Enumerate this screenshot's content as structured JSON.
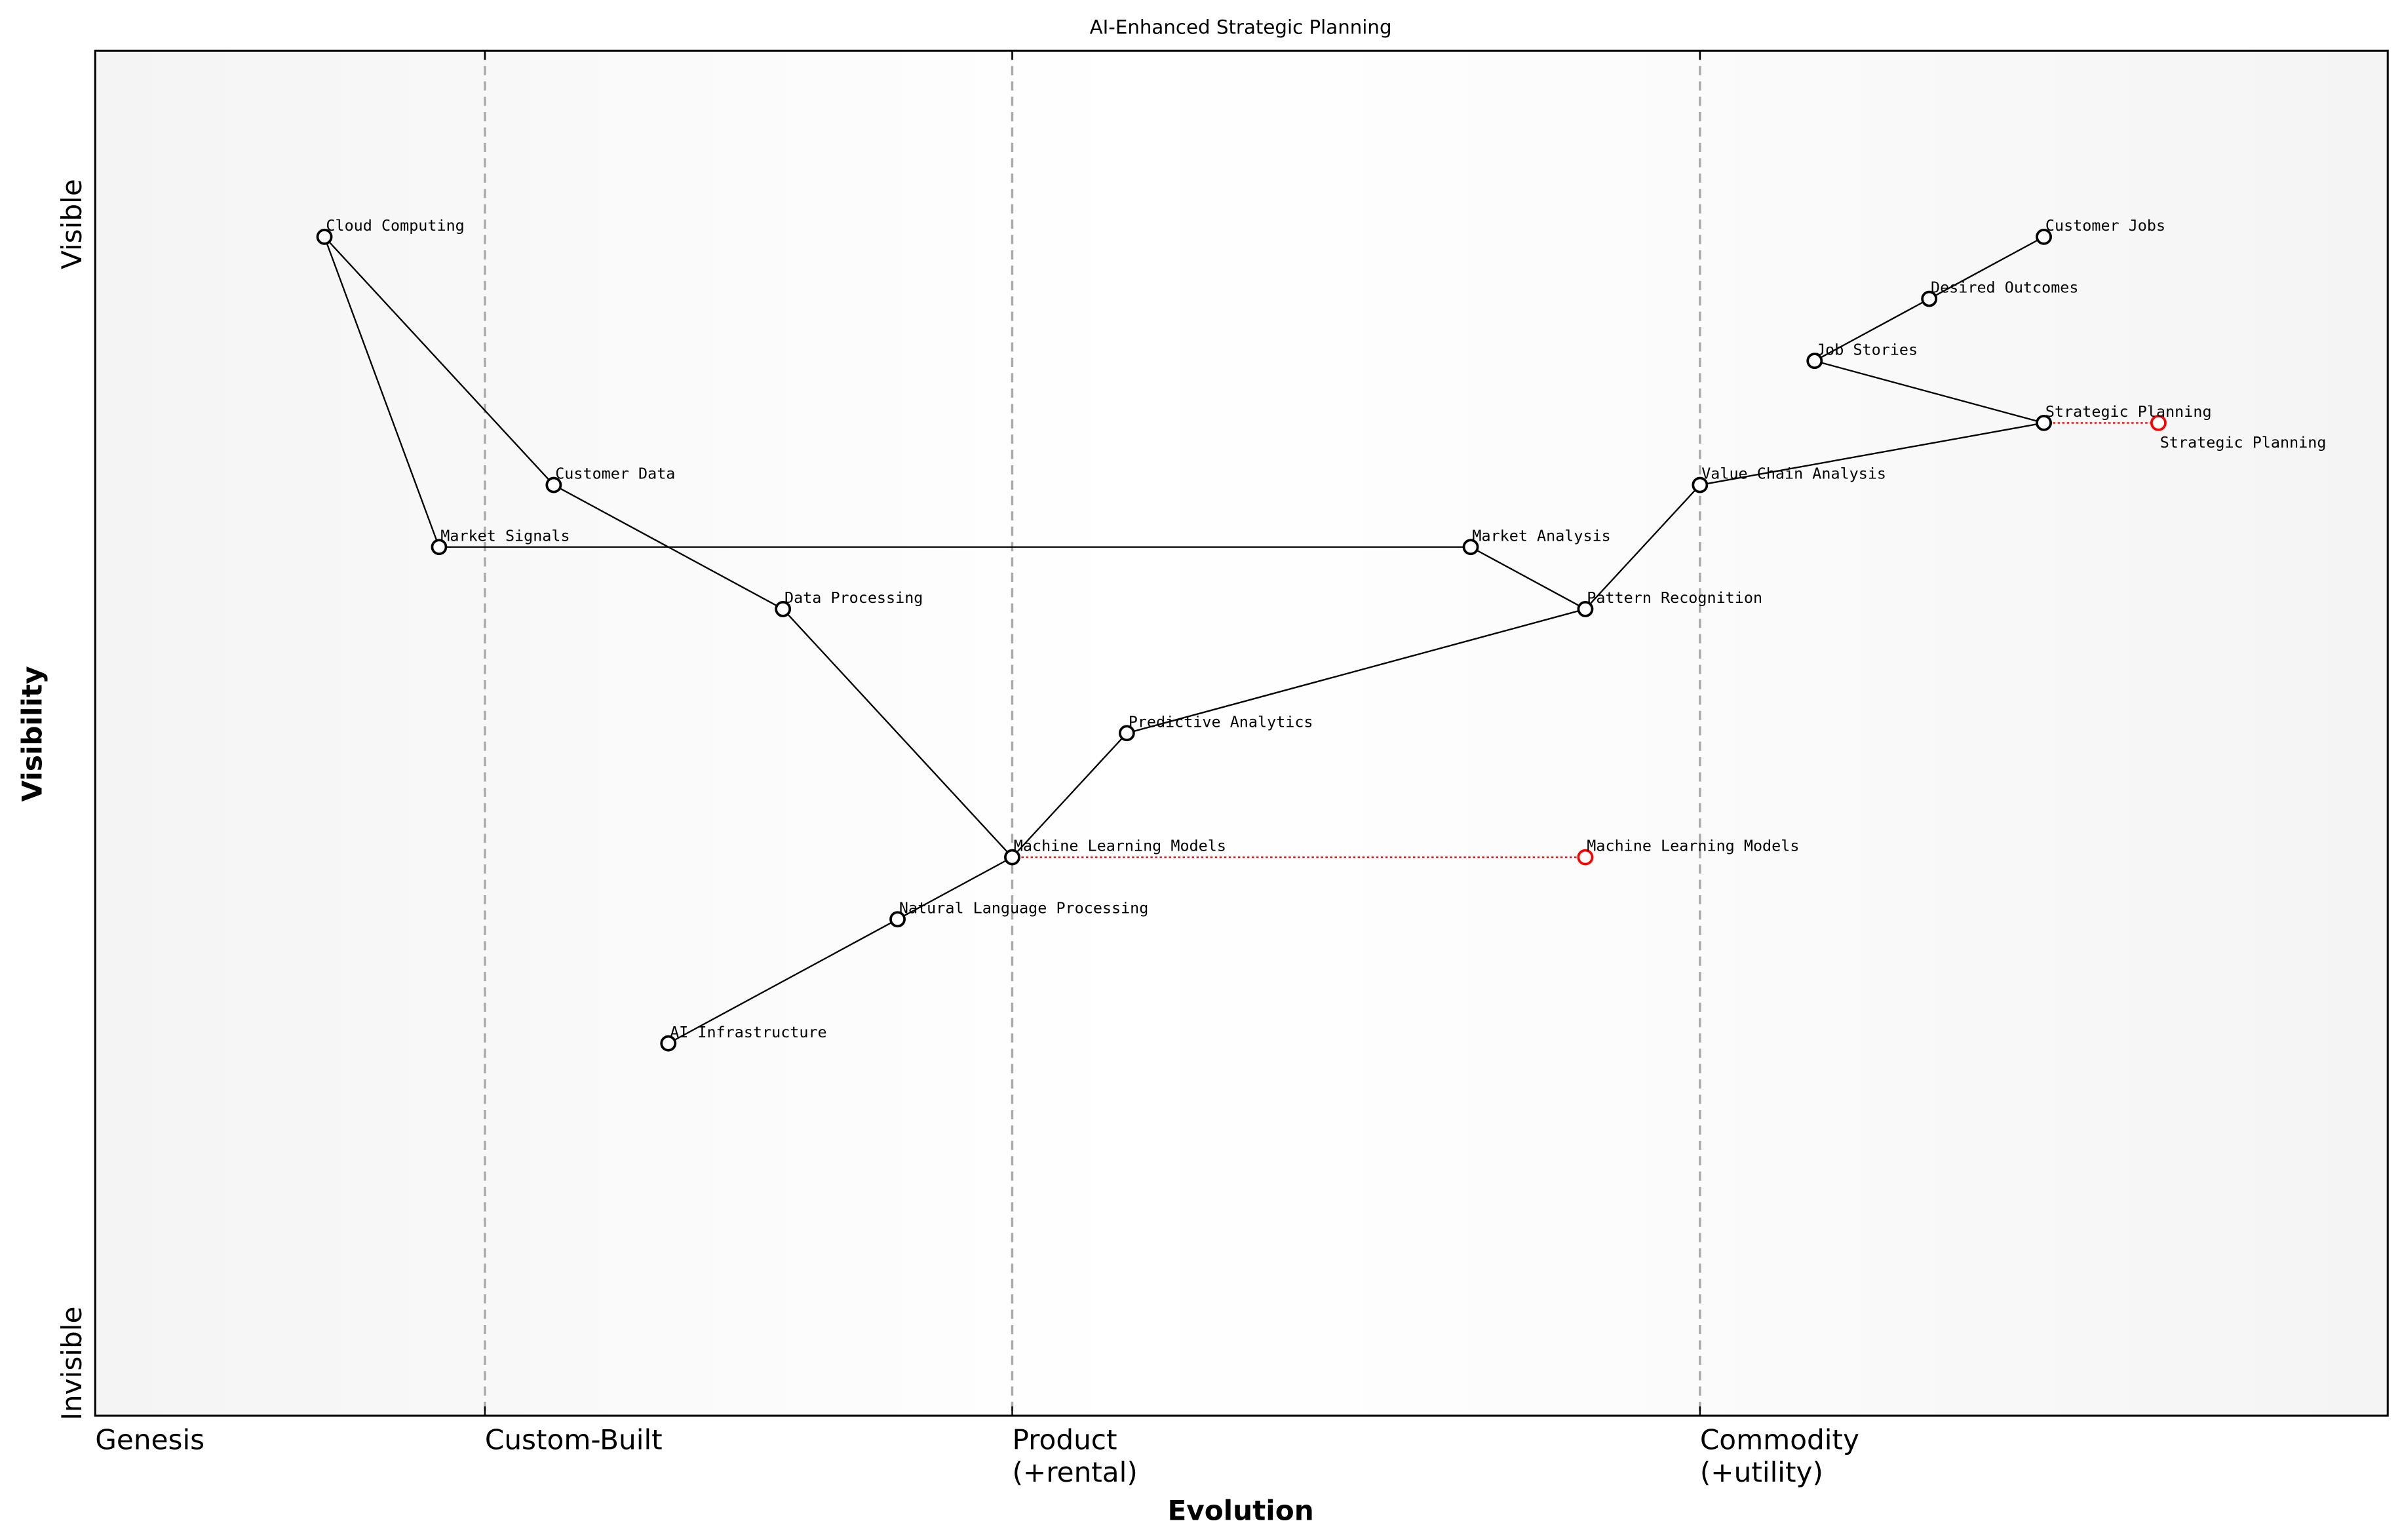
{
  "title": "AI-Enhanced Strategic Planning",
  "x_axis": {
    "label": "Evolution",
    "range": [
      0,
      1
    ],
    "stages": [
      {
        "label": "Genesis",
        "at": 0.0
      },
      {
        "label": "Custom-Built",
        "at": 0.17
      },
      {
        "label": "Product\n(+rental)",
        "at": 0.4
      },
      {
        "label": "Commodity\n(+utility)",
        "at": 0.7
      }
    ]
  },
  "y_axis": {
    "label": "Visibility",
    "range": [
      0,
      1.1
    ],
    "top_label": "Visible",
    "bottom_label": "Invisible"
  },
  "colors": {
    "node": "#000000",
    "evolved": "#ff0000",
    "link": "#000000",
    "stage_line": "#aaaaaa"
  },
  "chart_data": {
    "type": "wardley-map",
    "components": [
      {
        "name": "Cloud Computing",
        "evolution": 0.1,
        "visibility": 0.95
      },
      {
        "name": "Customer Data",
        "evolution": 0.2,
        "visibility": 0.75
      },
      {
        "name": "Market Signals",
        "evolution": 0.15,
        "visibility": 0.7
      },
      {
        "name": "Data Processing",
        "evolution": 0.3,
        "visibility": 0.65
      },
      {
        "name": "Predictive Analytics",
        "evolution": 0.45,
        "visibility": 0.55
      },
      {
        "name": "Machine Learning Models",
        "evolution": 0.4,
        "visibility": 0.45
      },
      {
        "name": "Natural Language Processing",
        "evolution": 0.35,
        "visibility": 0.4
      },
      {
        "name": "AI Infrastructure",
        "evolution": 0.25,
        "visibility": 0.3
      },
      {
        "name": "Market Analysis",
        "evolution": 0.6,
        "visibility": 0.7
      },
      {
        "name": "Pattern Recognition",
        "evolution": 0.65,
        "visibility": 0.65
      },
      {
        "name": "Value Chain Analysis",
        "evolution": 0.7,
        "visibility": 0.75
      },
      {
        "name": "Strategic Planning",
        "evolution": 0.85,
        "visibility": 0.8
      },
      {
        "name": "Job Stories",
        "evolution": 0.75,
        "visibility": 0.85
      },
      {
        "name": "Desired Outcomes",
        "evolution": 0.8,
        "visibility": 0.9
      },
      {
        "name": "Customer Jobs",
        "evolution": 0.85,
        "visibility": 0.95
      }
    ],
    "links": [
      [
        "Cloud Computing",
        "Customer Data"
      ],
      [
        "Cloud Computing",
        "Market Signals"
      ],
      [
        "Market Signals",
        "Market Analysis"
      ],
      [
        "Customer Data",
        "Data Processing"
      ],
      [
        "Data Processing",
        "Machine Learning Models"
      ],
      [
        "Machine Learning Models",
        "Predictive Analytics"
      ],
      [
        "Machine Learning Models",
        "Natural Language Processing"
      ],
      [
        "Natural Language Processing",
        "AI Infrastructure"
      ],
      [
        "Predictive Analytics",
        "Pattern Recognition"
      ],
      [
        "Pattern Recognition",
        "Market Analysis"
      ],
      [
        "Pattern Recognition",
        "Value Chain Analysis"
      ],
      [
        "Value Chain Analysis",
        "Strategic Planning"
      ],
      [
        "Strategic Planning",
        "Job Stories"
      ],
      [
        "Job Stories",
        "Desired Outcomes"
      ],
      [
        "Desired Outcomes",
        "Customer Jobs"
      ]
    ],
    "evolutions": [
      {
        "name": "Strategic Planning",
        "from": 0.85,
        "to": 0.9,
        "visibility": 0.8
      },
      {
        "name": "Machine Learning Models",
        "from": 0.4,
        "to": 0.65,
        "visibility": 0.45
      }
    ]
  }
}
